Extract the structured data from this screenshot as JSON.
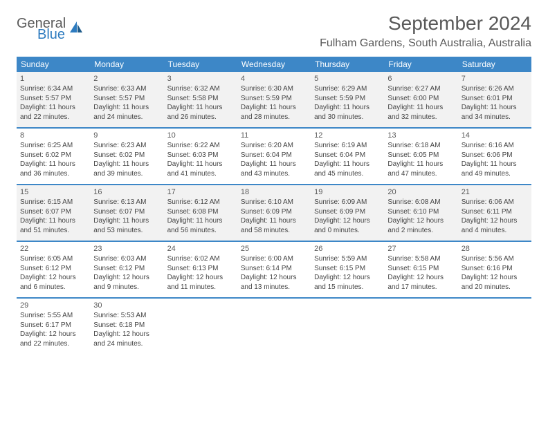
{
  "logo": {
    "line1": "General",
    "line2": "Blue"
  },
  "title": "September 2024",
  "location": "Fulham Gardens, South Australia, Australia",
  "colors": {
    "header_bg": "#3d87c7",
    "header_text": "#ffffff",
    "shaded_bg": "#f2f2f2",
    "text_gray": "#595959",
    "border": "#3d87c7",
    "logo_blue": "#2d7bbf"
  },
  "weekdays": [
    "Sunday",
    "Monday",
    "Tuesday",
    "Wednesday",
    "Thursday",
    "Friday",
    "Saturday"
  ],
  "weeks": [
    {
      "shaded": true,
      "days": [
        {
          "n": "1",
          "sunrise": "6:34 AM",
          "sunset": "5:57 PM",
          "dl_h": "11",
          "dl_m": "22"
        },
        {
          "n": "2",
          "sunrise": "6:33 AM",
          "sunset": "5:57 PM",
          "dl_h": "11",
          "dl_m": "24"
        },
        {
          "n": "3",
          "sunrise": "6:32 AM",
          "sunset": "5:58 PM",
          "dl_h": "11",
          "dl_m": "26"
        },
        {
          "n": "4",
          "sunrise": "6:30 AM",
          "sunset": "5:59 PM",
          "dl_h": "11",
          "dl_m": "28"
        },
        {
          "n": "5",
          "sunrise": "6:29 AM",
          "sunset": "5:59 PM",
          "dl_h": "11",
          "dl_m": "30"
        },
        {
          "n": "6",
          "sunrise": "6:27 AM",
          "sunset": "6:00 PM",
          "dl_h": "11",
          "dl_m": "32"
        },
        {
          "n": "7",
          "sunrise": "6:26 AM",
          "sunset": "6:01 PM",
          "dl_h": "11",
          "dl_m": "34"
        }
      ]
    },
    {
      "shaded": false,
      "days": [
        {
          "n": "8",
          "sunrise": "6:25 AM",
          "sunset": "6:02 PM",
          "dl_h": "11",
          "dl_m": "36"
        },
        {
          "n": "9",
          "sunrise": "6:23 AM",
          "sunset": "6:02 PM",
          "dl_h": "11",
          "dl_m": "39"
        },
        {
          "n": "10",
          "sunrise": "6:22 AM",
          "sunset": "6:03 PM",
          "dl_h": "11",
          "dl_m": "41"
        },
        {
          "n": "11",
          "sunrise": "6:20 AM",
          "sunset": "6:04 PM",
          "dl_h": "11",
          "dl_m": "43"
        },
        {
          "n": "12",
          "sunrise": "6:19 AM",
          "sunset": "6:04 PM",
          "dl_h": "11",
          "dl_m": "45"
        },
        {
          "n": "13",
          "sunrise": "6:18 AM",
          "sunset": "6:05 PM",
          "dl_h": "11",
          "dl_m": "47"
        },
        {
          "n": "14",
          "sunrise": "6:16 AM",
          "sunset": "6:06 PM",
          "dl_h": "11",
          "dl_m": "49"
        }
      ]
    },
    {
      "shaded": true,
      "days": [
        {
          "n": "15",
          "sunrise": "6:15 AM",
          "sunset": "6:07 PM",
          "dl_h": "11",
          "dl_m": "51"
        },
        {
          "n": "16",
          "sunrise": "6:13 AM",
          "sunset": "6:07 PM",
          "dl_h": "11",
          "dl_m": "53"
        },
        {
          "n": "17",
          "sunrise": "6:12 AM",
          "sunset": "6:08 PM",
          "dl_h": "11",
          "dl_m": "56"
        },
        {
          "n": "18",
          "sunrise": "6:10 AM",
          "sunset": "6:09 PM",
          "dl_h": "11",
          "dl_m": "58"
        },
        {
          "n": "19",
          "sunrise": "6:09 AM",
          "sunset": "6:09 PM",
          "dl_h": "12",
          "dl_m": "0"
        },
        {
          "n": "20",
          "sunrise": "6:08 AM",
          "sunset": "6:10 PM",
          "dl_h": "12",
          "dl_m": "2"
        },
        {
          "n": "21",
          "sunrise": "6:06 AM",
          "sunset": "6:11 PM",
          "dl_h": "12",
          "dl_m": "4"
        }
      ]
    },
    {
      "shaded": false,
      "days": [
        {
          "n": "22",
          "sunrise": "6:05 AM",
          "sunset": "6:12 PM",
          "dl_h": "12",
          "dl_m": "6"
        },
        {
          "n": "23",
          "sunrise": "6:03 AM",
          "sunset": "6:12 PM",
          "dl_h": "12",
          "dl_m": "9"
        },
        {
          "n": "24",
          "sunrise": "6:02 AM",
          "sunset": "6:13 PM",
          "dl_h": "12",
          "dl_m": "11"
        },
        {
          "n": "25",
          "sunrise": "6:00 AM",
          "sunset": "6:14 PM",
          "dl_h": "12",
          "dl_m": "13"
        },
        {
          "n": "26",
          "sunrise": "5:59 AM",
          "sunset": "6:15 PM",
          "dl_h": "12",
          "dl_m": "15"
        },
        {
          "n": "27",
          "sunrise": "5:58 AM",
          "sunset": "6:15 PM",
          "dl_h": "12",
          "dl_m": "17"
        },
        {
          "n": "28",
          "sunrise": "5:56 AM",
          "sunset": "6:16 PM",
          "dl_h": "12",
          "dl_m": "20"
        }
      ]
    },
    {
      "shaded": false,
      "days": [
        {
          "n": "29",
          "sunrise": "5:55 AM",
          "sunset": "6:17 PM",
          "dl_h": "12",
          "dl_m": "22"
        },
        {
          "n": "30",
          "sunrise": "5:53 AM",
          "sunset": "6:18 PM",
          "dl_h": "12",
          "dl_m": "24"
        },
        {
          "empty": true
        },
        {
          "empty": true
        },
        {
          "empty": true
        },
        {
          "empty": true
        },
        {
          "empty": true
        }
      ]
    }
  ]
}
